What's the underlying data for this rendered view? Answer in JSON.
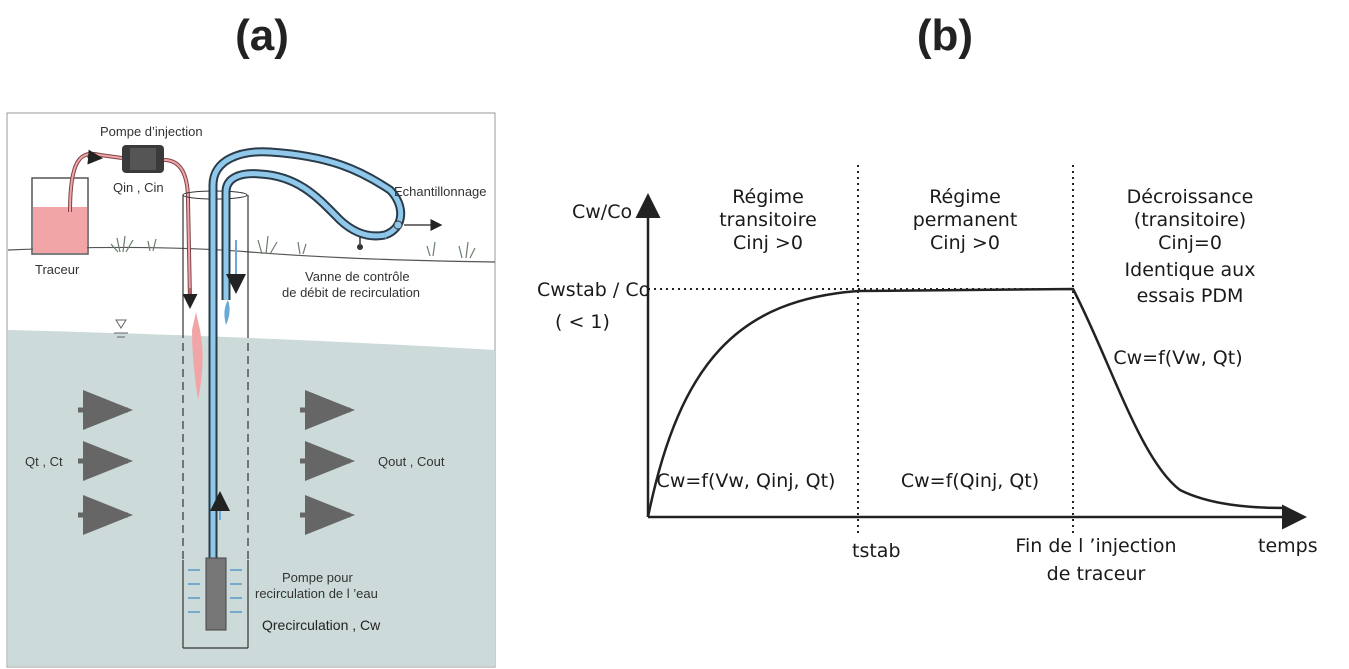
{
  "panel_a": {
    "label": "(a)",
    "pump_injection": "Pompe d’injection",
    "q_in": "Qin",
    "c_in": "Cin",
    "tracer": "Traceur",
    "sampling": "Echantillonnage",
    "valve_line1": "Vanne de contrôle",
    "valve_line2": "de débit de recirculation",
    "q_t": "Qt",
    "c_t": "Ct",
    "q_out": "Qout",
    "c_out": "Cout",
    "pump_line1": "Pompe pour",
    "pump_line2": "recirculation de l ’eau",
    "q_recirc": "Qrecirculation",
    "c_w": "Cw",
    "colors": {
      "water": "#ccdada",
      "pipe": "#8fc8ea",
      "tracer": "#f2a5a7"
    }
  },
  "panel_b": {
    "label": "(b)",
    "y_label": "Cw/Co",
    "y_stab": "Cwstab / Co",
    "y_lt1": "( < 1)",
    "x_label": "temps",
    "t_stab": "tstab",
    "end_line1": "Fin de l ’injection",
    "end_line2": "de traceur",
    "phase1": {
      "line1": "Régime",
      "line2": "transitoire",
      "line3": "Cinj >0",
      "formula": "Cw=f(Vw, Qinj, Qt)"
    },
    "phase2": {
      "line1": "Régime",
      "line2": "permanent",
      "line3": "Cinj >0",
      "formula": "Cw=f(Qinj, Qt)"
    },
    "phase3": {
      "line1": "Décroissance",
      "line2": "(transitoire)",
      "line3": "Cinj=0",
      "line4": "Identique aux",
      "line5": "essais PDM",
      "formula": "Cw=f(Vw, Qt)"
    }
  }
}
